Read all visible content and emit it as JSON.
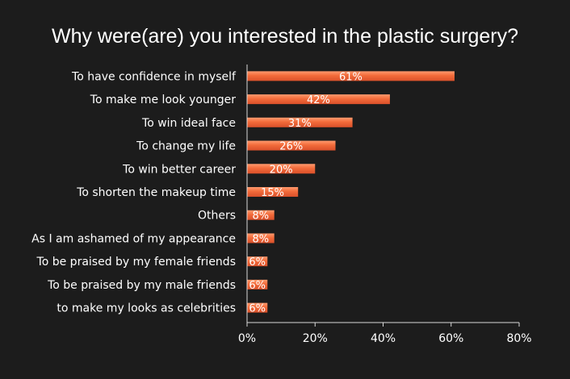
{
  "chart_data": {
    "type": "bar",
    "orientation": "horizontal",
    "title": "Why were(are) you interested in the plastic surgery?",
    "categories": [
      "To have confidence in myself",
      "To make me look younger",
      "To win ideal face",
      "To change my life",
      "To win better career",
      "To shorten the makeup time",
      "Others",
      "As I am ashamed of my appearance",
      "To be praised by my female friends",
      "To be praised by my male friends",
      "to make my looks as celebrities"
    ],
    "values": [
      61,
      42,
      31,
      26,
      20,
      15,
      8,
      8,
      6,
      6,
      6
    ],
    "data_labels": [
      "61%",
      "42%",
      "31%",
      "26%",
      "20%",
      "15%",
      "8%",
      "8%",
      "6%",
      "6%",
      "6%"
    ],
    "xlim": [
      0,
      80
    ],
    "x_ticks": [
      0,
      20,
      40,
      60,
      80
    ],
    "x_tick_labels": [
      "0%",
      "20%",
      "40%",
      "60%",
      "80%"
    ],
    "grid": false,
    "legend": "none",
    "colors": {
      "background": "#1c1c1c",
      "bar": "#f26b3a",
      "bar_highlight": "#ff9a6e",
      "text": "#ffffff",
      "axis": "#d9d9d9"
    }
  }
}
